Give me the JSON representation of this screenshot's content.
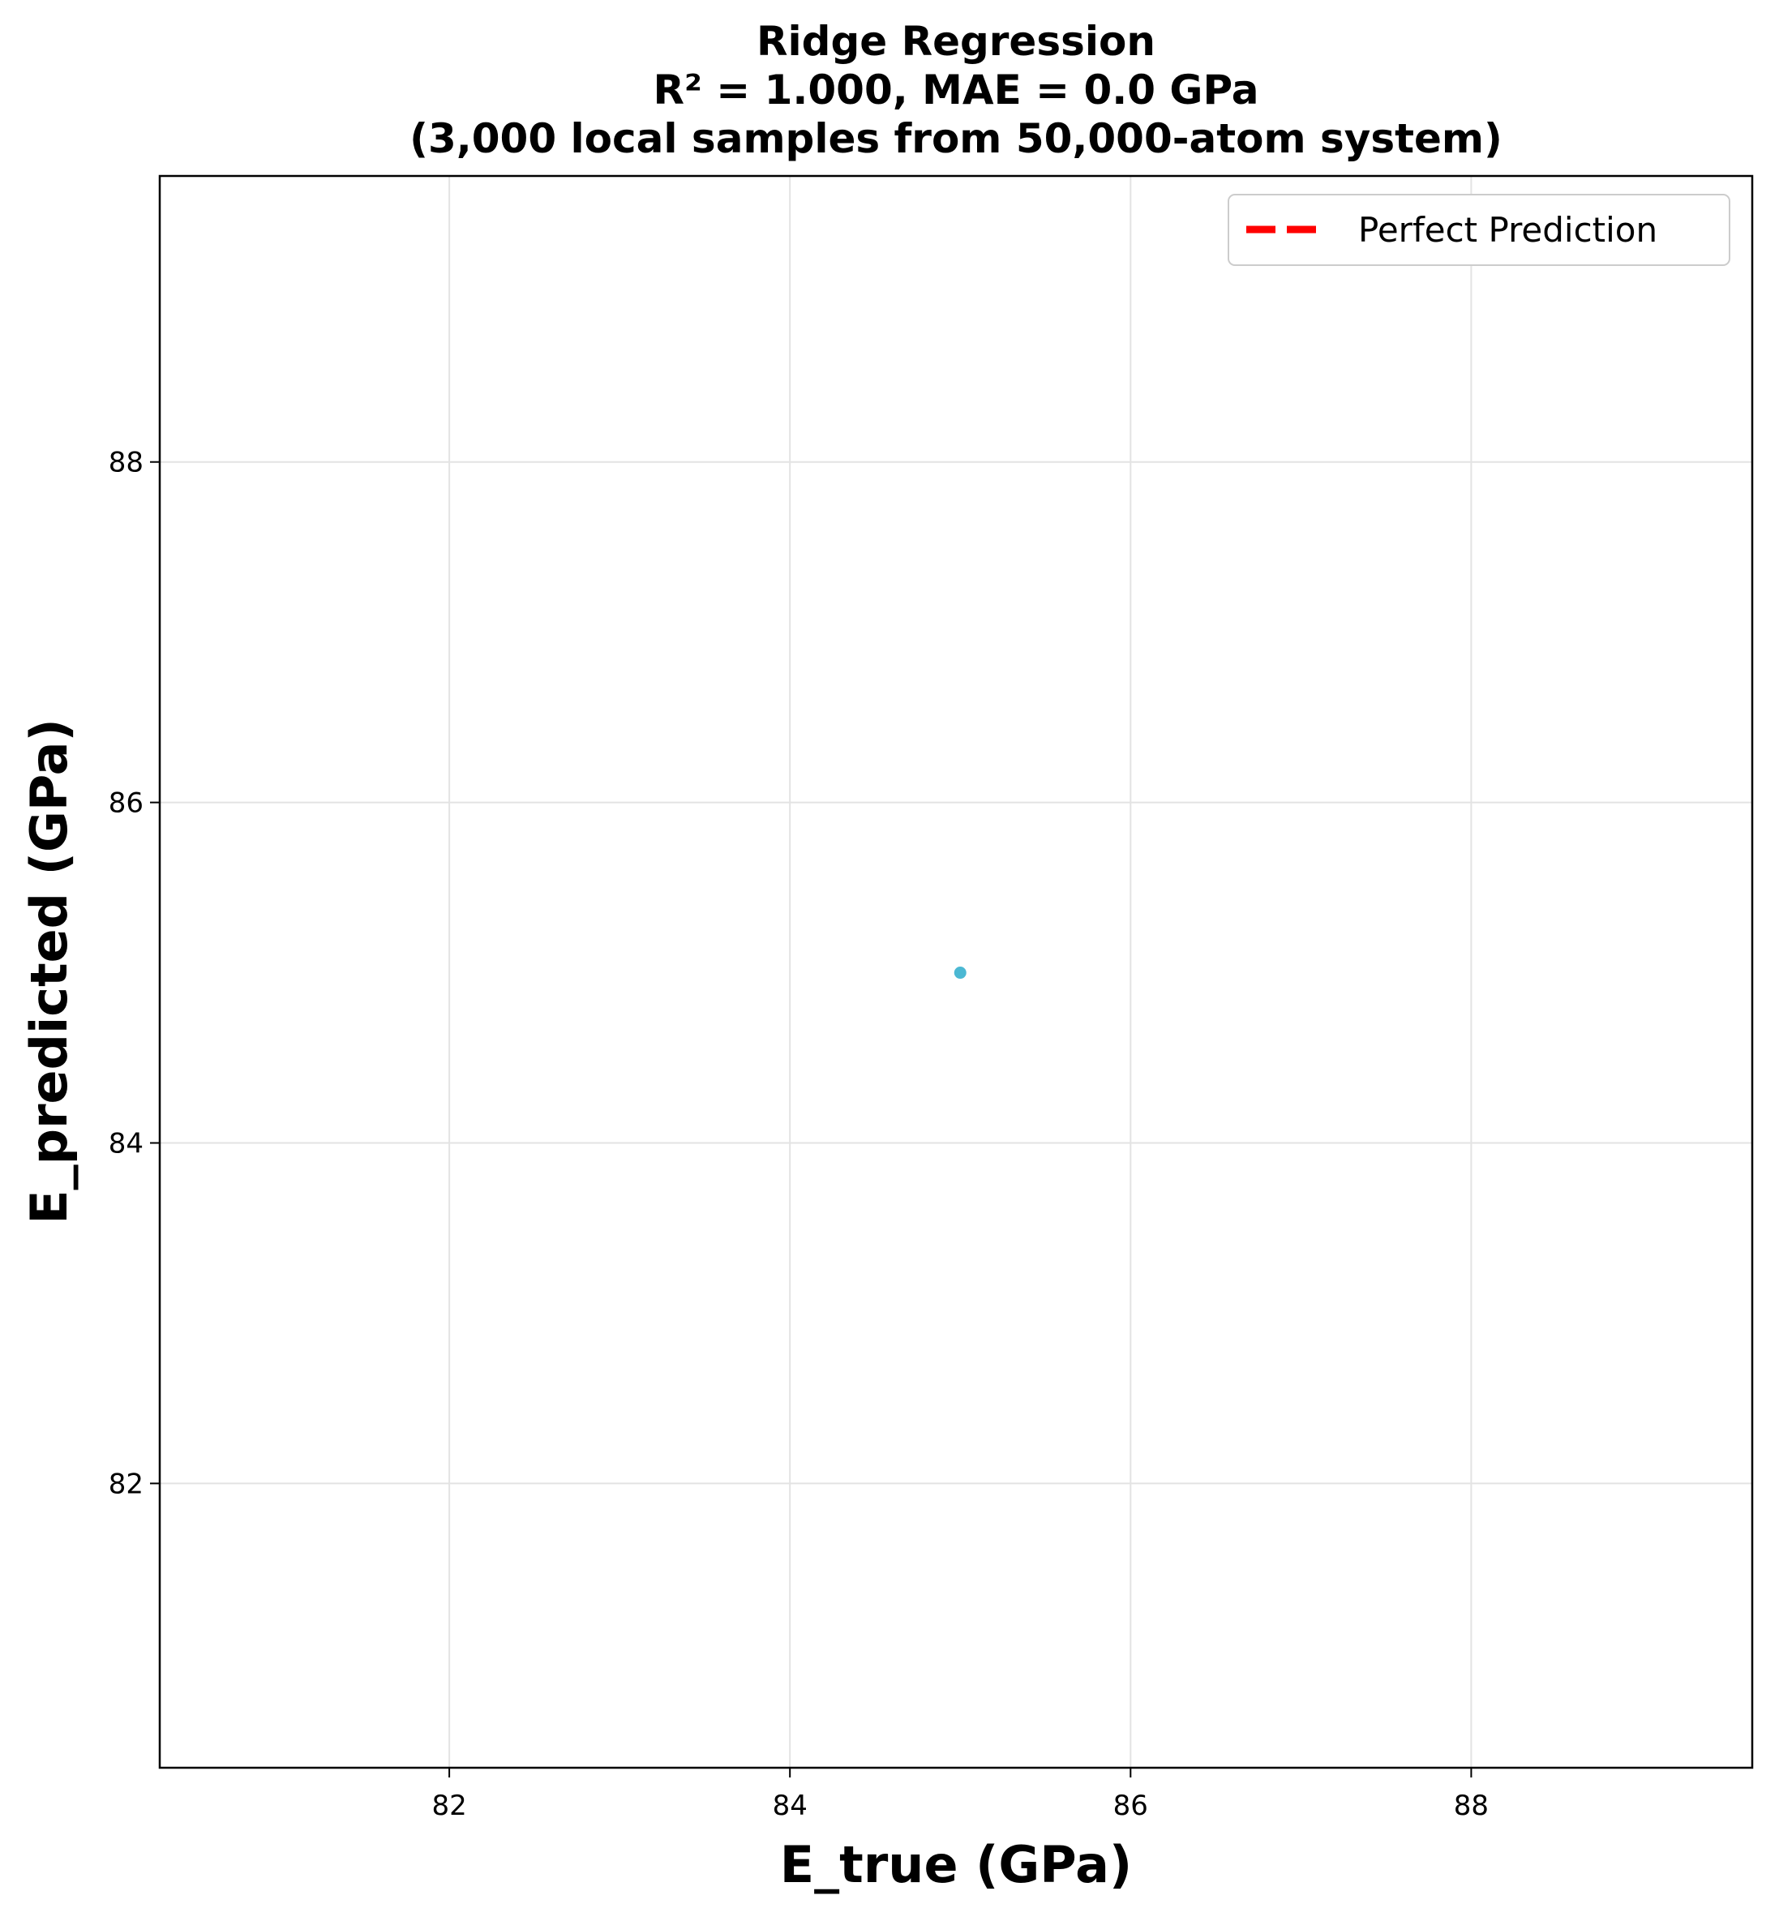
{
  "chart_data": {
    "type": "scatter",
    "title_lines": [
      "Ridge Regression",
      "R² = 1.000, MAE = 0.0 GPa",
      "(3,000 local samples from 50,000-atom system)"
    ],
    "xlabel": "E_true (GPa)",
    "ylabel": "E_predicted (GPa)",
    "xlim": [
      80.3,
      89.65
    ],
    "ylim": [
      80.33,
      89.68
    ],
    "xticks": [
      82,
      84,
      86,
      88
    ],
    "yticks": [
      82,
      84,
      86,
      88
    ],
    "xtick_labels": [
      "82",
      "84",
      "86",
      "88"
    ],
    "ytick_labels": [
      "82",
      "84",
      "86",
      "88"
    ],
    "grid": true,
    "legend_position": "top-right",
    "series": [
      {
        "name": "Perfect Prediction",
        "kind": "line",
        "style": "dashed",
        "color": "#ff0000",
        "x": [
          85.0,
          85.0
        ],
        "y": [
          85.0,
          85.0
        ]
      },
      {
        "kind": "scatter",
        "color": "#4bb8d3",
        "x": [
          85.0
        ],
        "y": [
          85.0
        ]
      }
    ]
  }
}
